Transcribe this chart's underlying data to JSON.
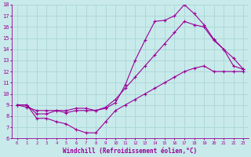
{
  "xlabel": "Windchill (Refroidissement éolien,°C)",
  "bg_color": "#c8eaea",
  "grid_color": "#afd8d8",
  "line_color": "#990099",
  "xlim": [
    -0.5,
    23.5
  ],
  "ylim": [
    6,
    18
  ],
  "xticks": [
    0,
    1,
    2,
    3,
    4,
    5,
    6,
    7,
    8,
    9,
    10,
    11,
    12,
    13,
    14,
    15,
    16,
    17,
    18,
    19,
    20,
    21,
    22,
    23
  ],
  "yticks": [
    6,
    7,
    8,
    9,
    10,
    11,
    12,
    13,
    14,
    15,
    16,
    17,
    18
  ],
  "series": [
    {
      "x": [
        0,
        1,
        2,
        3,
        4,
        5,
        6,
        7,
        8,
        9,
        10,
        11,
        12,
        13,
        14,
        15,
        16,
        17,
        18,
        19,
        20,
        21,
        22,
        23
      ],
      "y": [
        9,
        9,
        7.8,
        7.8,
        7.5,
        7.3,
        6.8,
        6.5,
        6.5,
        7.5,
        8.5,
        9.0,
        9.5,
        10.0,
        10.5,
        11.0,
        11.5,
        12.0,
        12.3,
        12.5,
        12.0,
        12.0,
        12.0,
        12.0
      ]
    },
    {
      "x": [
        0,
        1,
        2,
        3,
        4,
        5,
        6,
        7,
        8,
        9,
        10,
        11,
        12,
        13,
        14,
        15,
        16,
        17,
        18,
        19,
        20,
        21,
        22,
        23
      ],
      "y": [
        9,
        8.8,
        8.5,
        8.5,
        8.5,
        8.3,
        8.5,
        8.5,
        8.5,
        8.8,
        9.5,
        10.5,
        11.5,
        12.5,
        13.5,
        14.5,
        15.5,
        16.5,
        16.2,
        16.0,
        14.8,
        14.0,
        13.2,
        12.2
      ]
    },
    {
      "x": [
        0,
        1,
        2,
        3,
        4,
        5,
        6,
        7,
        8,
        9,
        10,
        11,
        12,
        13,
        14,
        15,
        16,
        17,
        18,
        19,
        20,
        21,
        22,
        23
      ],
      "y": [
        9,
        9,
        8.2,
        8.2,
        8.5,
        8.5,
        8.7,
        8.7,
        8.5,
        8.7,
        9.2,
        10.8,
        13.0,
        14.8,
        16.5,
        16.6,
        17.0,
        18.0,
        17.2,
        16.2,
        14.9,
        14.0,
        12.5,
        12.2
      ]
    }
  ]
}
